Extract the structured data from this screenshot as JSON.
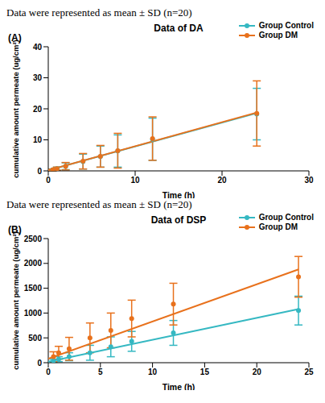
{
  "chart_data": [
    {
      "type": "scatter",
      "subtitle": "Data were represented as mean ± SD (n=20)",
      "panel": "(A)",
      "title": "Data of DA",
      "x_label": "Time (h)",
      "y_label": "cumulative amount permeate (ug/cm²)",
      "xlim": [
        0,
        30
      ],
      "xticks": [
        0,
        10,
        20,
        30
      ],
      "ylim": [
        0,
        40
      ],
      "yticks": [
        0,
        10,
        20,
        30,
        40
      ],
      "grid": false,
      "legend": "upper right",
      "x": [
        0.5,
        1,
        2,
        4,
        6,
        8,
        12,
        24
      ],
      "series": [
        {
          "name": "Group Control",
          "color": "#35b8c2",
          "marker": "circle",
          "values": [
            0.3,
            0.7,
            1.5,
            3.0,
            4.6,
            6.4,
            10.2,
            18.3
          ],
          "sd": [
            0.3,
            0.5,
            1.1,
            2.4,
            3.4,
            5.2,
            6.8,
            8.3
          ],
          "fit": {
            "x": [
              0,
              24
            ],
            "values": [
              0.2,
              18.6
            ]
          }
        },
        {
          "name": "Group DM",
          "color": "#e8711c",
          "marker": "circle",
          "values": [
            0.3,
            0.7,
            1.5,
            3.1,
            4.7,
            6.5,
            10.4,
            18.5
          ],
          "sd": [
            0.3,
            0.5,
            1.2,
            2.5,
            3.5,
            5.6,
            7.0,
            10.5
          ],
          "fit": {
            "x": [
              0,
              24
            ],
            "values": [
              0.2,
              18.8
            ]
          }
        }
      ]
    },
    {
      "type": "scatter",
      "subtitle": "Data were represented as mean ± SD (n=20)",
      "panel": "(B)",
      "title": "Data of DSP",
      "x_label": "Time (h)",
      "y_label": "cumulative amount permeate (ug/cm²)",
      "xlim": [
        0,
        25
      ],
      "xticks": [
        0,
        5,
        10,
        15,
        20,
        25
      ],
      "ylim": [
        0,
        2500
      ],
      "yticks": [
        0,
        500,
        1000,
        1500,
        2000,
        2500
      ],
      "grid": false,
      "legend": "upper right",
      "x": [
        0.5,
        1,
        2,
        4,
        6,
        8,
        12,
        24
      ],
      "series": [
        {
          "name": "Group Control",
          "color": "#35b8c2",
          "marker": "circle",
          "values": [
            40,
            70,
            120,
            200,
            320,
            430,
            600,
            1050
          ],
          "sd": [
            30,
            50,
            80,
            150,
            200,
            200,
            250,
            290
          ],
          "fit": {
            "x": [
              0,
              24
            ],
            "values": [
              20,
              1080
            ]
          }
        },
        {
          "name": "Group DM",
          "color": "#e8711c",
          "marker": "circle",
          "values": [
            120,
            200,
            280,
            500,
            650,
            890,
            1180,
            1730
          ],
          "sd": [
            100,
            130,
            230,
            300,
            350,
            370,
            420,
            410
          ],
          "fit": {
            "x": [
              0,
              24
            ],
            "values": [
              80,
              1880
            ]
          }
        }
      ]
    }
  ]
}
